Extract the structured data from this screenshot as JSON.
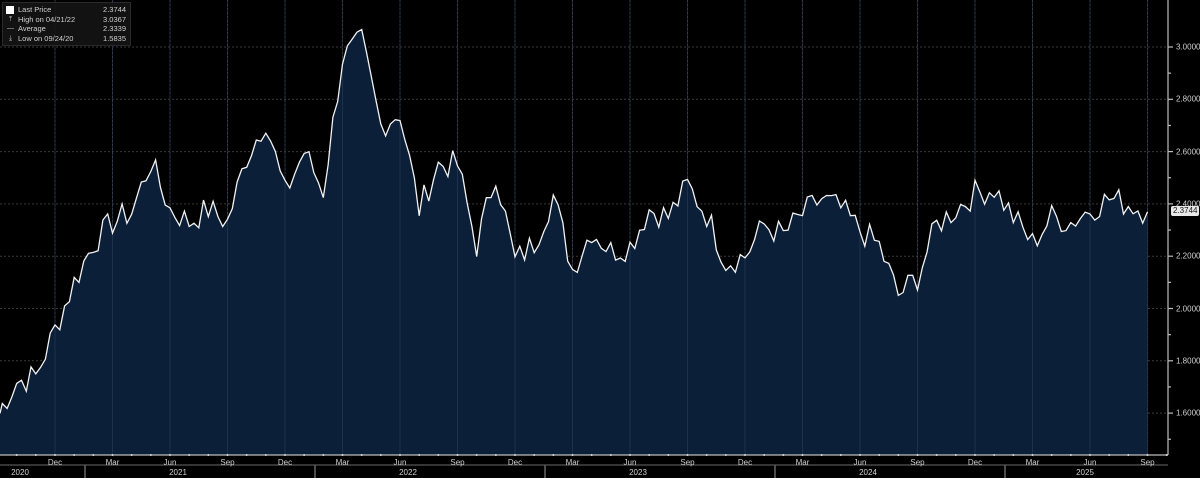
{
  "legend": {
    "items": [
      {
        "symbol": "square-icon",
        "label": "Last Price",
        "value": "2.3744"
      },
      {
        "symbol": "high-marker-icon",
        "label": "High on 04/21/22",
        "value": "3.0367"
      },
      {
        "symbol": "average-line-icon",
        "label": "Average",
        "value": "2.3339"
      },
      {
        "symbol": "low-marker-icon",
        "label": "Low on 09/24/20",
        "value": "1.5835"
      }
    ]
  },
  "last_price_tag": "2.3744",
  "colors": {
    "background": "#000000",
    "fill": "#0a1e36",
    "line": "#ffffff",
    "grid": "#3a3a3a"
  },
  "chart_data": {
    "type": "area",
    "title": "",
    "xlabel": "",
    "ylabel": "",
    "ylim": [
      1.45,
      3.08
    ],
    "grid": true,
    "legend_position": "top-left",
    "y_ticks": [
      "1.6000",
      "1.8000",
      "2.0000",
      "2.2000",
      "2.4000",
      "2.6000",
      "2.8000",
      "3.0000"
    ],
    "x_ticks": [
      {
        "label": "Dec",
        "year": "2020"
      },
      {
        "label": "Mar",
        "year": "2021"
      },
      {
        "label": "Jun",
        "year": "2021"
      },
      {
        "label": "Sep",
        "year": "2021"
      },
      {
        "label": "Dec",
        "year": "2021"
      },
      {
        "label": "Mar",
        "year": "2022"
      },
      {
        "label": "Jun",
        "year": "2022"
      },
      {
        "label": "Sep",
        "year": "2022"
      },
      {
        "label": "Dec",
        "year": "2022"
      },
      {
        "label": "Mar",
        "year": "2023"
      },
      {
        "label": "Jun",
        "year": "2023"
      },
      {
        "label": "Sep",
        "year": "2023"
      },
      {
        "label": "Dec",
        "year": "2023"
      },
      {
        "label": "Mar",
        "year": "2024"
      },
      {
        "label": "Jun",
        "year": "2024"
      },
      {
        "label": "Sep",
        "year": "2024"
      },
      {
        "label": "Dec",
        "year": "2024"
      },
      {
        "label": "Mar",
        "year": "2025"
      },
      {
        "label": "Jun",
        "year": "2025"
      },
      {
        "label": "Sep",
        "year": "2025"
      }
    ],
    "year_labels": [
      "2020",
      "2021",
      "2022",
      "2023",
      "2024",
      "2025"
    ],
    "series": [
      {
        "name": "Last Price",
        "x_dates": [
          "2020-09",
          "2020-10",
          "2020-11",
          "2020-12",
          "2021-01",
          "2021-02",
          "2021-03",
          "2021-04",
          "2021-05",
          "2021-06",
          "2021-07",
          "2021-08",
          "2021-09",
          "2021-10",
          "2021-11",
          "2021-12",
          "2022-01",
          "2022-02",
          "2022-03",
          "2022-04",
          "2022-05",
          "2022-06",
          "2022-07",
          "2022-08",
          "2022-09",
          "2022-10",
          "2022-11",
          "2022-12",
          "2023-01",
          "2023-02",
          "2023-03",
          "2023-04",
          "2023-05",
          "2023-06",
          "2023-07",
          "2023-08",
          "2023-09",
          "2023-10",
          "2023-11",
          "2023-12",
          "2024-01",
          "2024-02",
          "2024-03",
          "2024-04",
          "2024-05",
          "2024-06",
          "2024-07",
          "2024-08",
          "2024-09",
          "2024-10",
          "2024-11",
          "2024-12",
          "2025-01",
          "2025-02",
          "2025-03",
          "2025-04",
          "2025-05",
          "2025-06",
          "2025-07",
          "2025-08",
          "2025-09"
        ],
        "values": [
          1.6,
          1.72,
          1.74,
          1.92,
          2.1,
          2.25,
          2.33,
          2.37,
          2.56,
          2.38,
          2.33,
          2.38,
          2.33,
          2.58,
          2.72,
          2.44,
          2.6,
          2.45,
          2.96,
          3.02,
          2.7,
          2.75,
          2.38,
          2.55,
          2.55,
          2.24,
          2.52,
          2.18,
          2.25,
          2.43,
          2.15,
          2.3,
          2.22,
          2.24,
          2.38,
          2.35,
          2.47,
          2.36,
          2.18,
          2.2,
          2.32,
          2.28,
          2.36,
          2.42,
          2.38,
          2.3,
          2.24,
          2.05,
          2.12,
          2.32,
          2.38,
          2.44,
          2.46,
          2.35,
          2.25,
          2.35,
          2.33,
          2.38,
          2.42,
          2.4,
          2.37
        ]
      }
    ]
  }
}
